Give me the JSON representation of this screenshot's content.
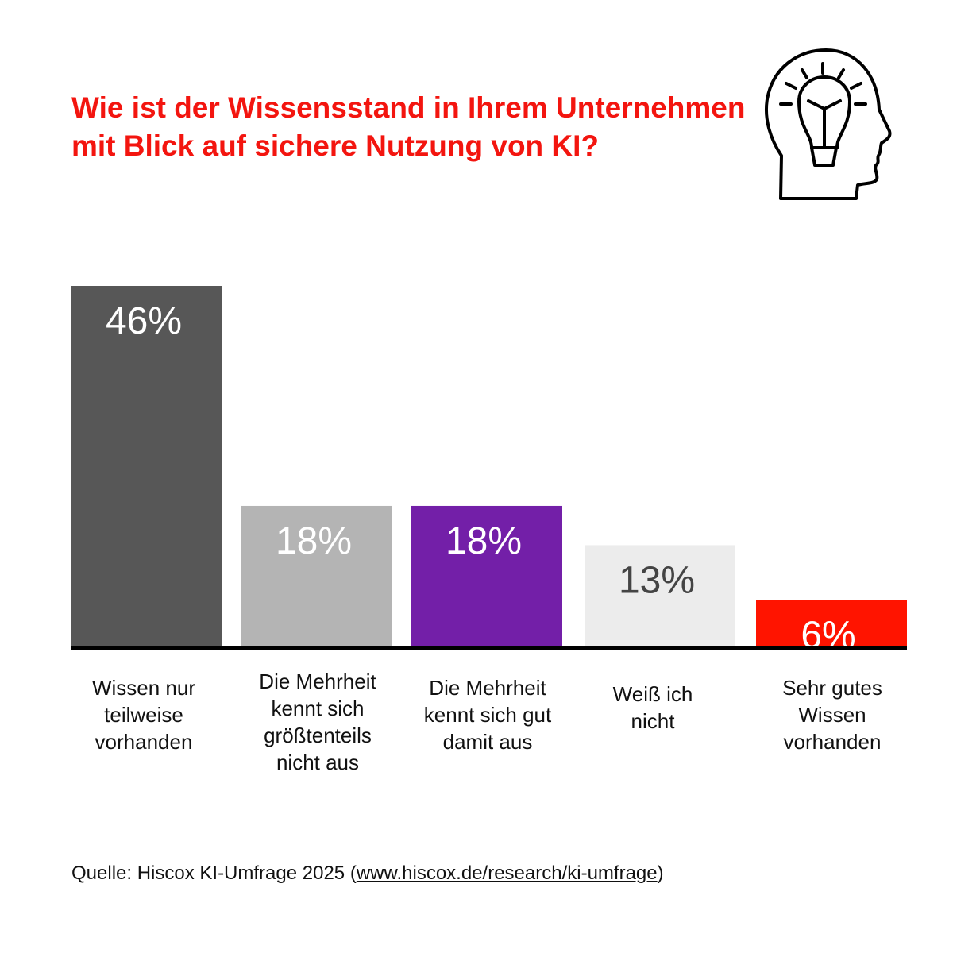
{
  "chart_data": {
    "type": "bar",
    "title": "Wie ist der Wissensstand in Ihrem Unternehmen mit Blick auf sichere Nutzung von KI?",
    "categories": [
      "Wissen nur teilweise vorhanden",
      "Die Mehrheit kennt sich größtenteils nicht aus",
      "Die Mehrheit kennt sich gut damit aus",
      "Weiß ich nicht",
      "Sehr gutes Wissen vorhanden"
    ],
    "category_lines": [
      [
        "Wissen nur",
        "teilweise",
        "vorhanden"
      ],
      [
        "Die Mehrheit",
        "kennt sich",
        "größtenteils",
        "nicht aus"
      ],
      [
        "Die Mehrheit",
        "kennt sich gut",
        "damit aus"
      ],
      [
        "Weiß ich",
        "nicht"
      ],
      [
        "Sehr gutes",
        "Wissen",
        "vorhanden"
      ]
    ],
    "values": [
      46,
      18,
      18,
      13,
      6
    ],
    "value_labels": [
      "46%",
      "18%",
      "18%",
      "13%",
      "6%"
    ],
    "colors": [
      "#575757",
      "#b4b4b4",
      "#731fa8",
      "#ececec",
      "#ff1400"
    ],
    "label_colors": [
      "#ffffff",
      "#ffffff",
      "#ffffff",
      "#444444",
      "#ffffff"
    ],
    "unit": "%",
    "grid": false,
    "ylim": [
      0,
      46
    ]
  },
  "title": "Wie ist der Wissensstand in Ihrem Unternehmen mit Blick auf sichere Nutzung von KI?",
  "icon": "head-lightbulb-icon",
  "source": {
    "prefix": "Quelle: Hiscox KI-Umfrage 2025 (",
    "link": "www.hiscox.de/research/ki-umfrage",
    "suffix": ")"
  }
}
